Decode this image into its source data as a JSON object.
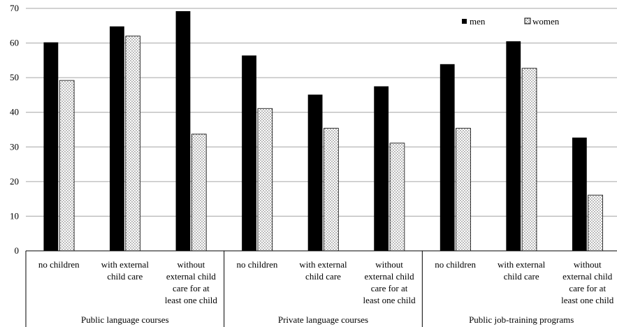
{
  "chart_data": {
    "type": "bar",
    "ylim": [
      0,
      70
    ],
    "yticks": [
      "0",
      "10",
      "20",
      "30",
      "40",
      "50",
      "60",
      "70"
    ],
    "grid": true,
    "legend_position": "top-right",
    "groups": [
      {
        "label": "Public language courses",
        "categories": [
          [
            "no children"
          ],
          [
            "with external",
            "child care"
          ],
          [
            "without",
            "external child",
            "care for at",
            "least one child"
          ]
        ]
      },
      {
        "label": "Private language courses",
        "categories": [
          [
            "no children"
          ],
          [
            "with external",
            "child care"
          ],
          [
            "without",
            "external child",
            "care for at",
            "least one child"
          ]
        ]
      },
      {
        "label": "Public job-training programs",
        "categories": [
          [
            "no children"
          ],
          [
            "with external",
            "child care"
          ],
          [
            "without",
            "external child",
            "care for at",
            "least one child"
          ]
        ]
      }
    ],
    "series": [
      {
        "name": "men",
        "values": [
          60.2,
          64.8,
          69.2,
          56.4,
          45.1,
          47.5,
          53.9,
          60.5,
          32.7
        ]
      },
      {
        "name": "women",
        "values": [
          49.2,
          62,
          33.7,
          41.1,
          35.4,
          31.1,
          35.4,
          52.7,
          16.1
        ]
      }
    ],
    "colors": {
      "men": "#000000",
      "women_dots": "#555555",
      "grid": "#a6a6a6",
      "axis": "#000000"
    }
  }
}
